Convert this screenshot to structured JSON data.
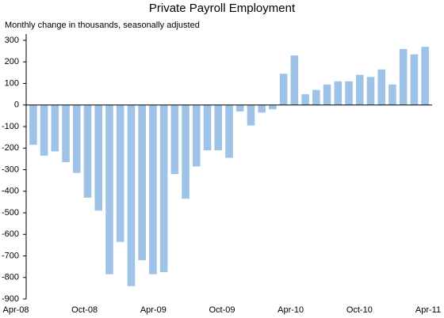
{
  "chart_data": {
    "type": "bar",
    "title": "Private Payroll Employment",
    "subtitle": "Monthly change in thousands, seasonally adjusted",
    "categories": [
      "Apr-08",
      null,
      null,
      null,
      null,
      null,
      "Oct-08",
      null,
      null,
      null,
      null,
      null,
      "Apr-09",
      null,
      null,
      null,
      null,
      null,
      "Oct-09",
      null,
      null,
      null,
      null,
      null,
      "Apr-10",
      null,
      null,
      null,
      null,
      null,
      "Oct-10",
      null,
      null,
      null,
      null,
      null,
      "Apr-11"
    ],
    "values": [
      -185,
      -235,
      -215,
      -265,
      -315,
      -430,
      -490,
      -785,
      -635,
      -840,
      -720,
      -785,
      -775,
      -320,
      -435,
      -285,
      -210,
      -210,
      -245,
      -30,
      -95,
      -35,
      -20,
      145,
      230,
      50,
      70,
      95,
      110,
      110,
      140,
      130,
      165,
      95,
      260,
      235,
      270
    ],
    "color": "#9fc3e6",
    "ylim": [
      -900,
      300
    ],
    "yticks": [
      -900,
      -800,
      -700,
      -600,
      -500,
      -400,
      -300,
      -200,
      -100,
      0,
      100,
      200,
      300
    ],
    "grid": false
  }
}
